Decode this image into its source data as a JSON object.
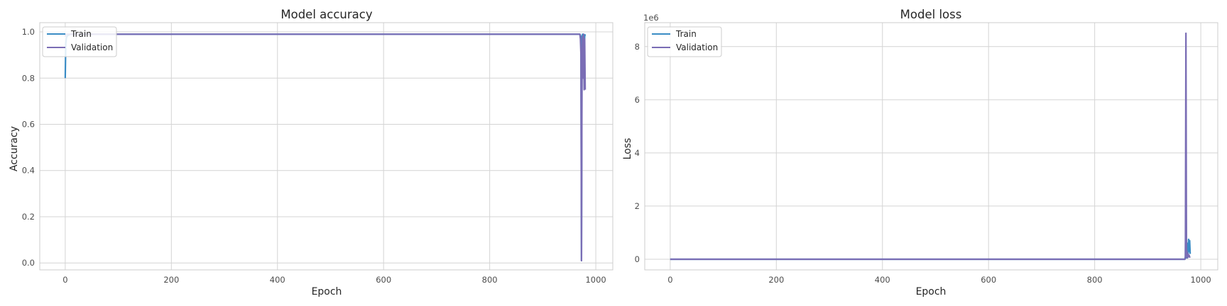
{
  "chart_data": [
    {
      "type": "line",
      "title": "Model accuracy",
      "xlabel": "Epoch",
      "ylabel": "Accuracy",
      "xlim": [
        -48,
        1032
      ],
      "ylim": [
        -0.03,
        1.04
      ],
      "xticks": [
        0,
        200,
        400,
        600,
        800,
        1000
      ],
      "yticks": [
        0.0,
        0.2,
        0.4,
        0.6,
        0.8,
        1.0
      ],
      "ytick_labels": [
        "0.0",
        "0.2",
        "0.4",
        "0.6",
        "0.8",
        "1.0"
      ],
      "grid": true,
      "legend": "top-left",
      "series": [
        {
          "name": "Train",
          "color": "#3a8cc5",
          "x": [
            0,
            1,
            2,
            3,
            5,
            10,
            100,
            300,
            500,
            700,
            900,
            965,
            970,
            971,
            972,
            973,
            974,
            975,
            976,
            977,
            978,
            979,
            980
          ],
          "y": [
            0.8,
            0.95,
            0.97,
            0.98,
            0.985,
            0.99,
            0.99,
            0.99,
            0.99,
            0.99,
            0.99,
            0.99,
            0.99,
            0.985,
            0.98,
            0.01,
            0.97,
            0.99,
            0.95,
            0.99,
            0.9,
            0.98,
            0.99
          ]
        },
        {
          "name": "Validation",
          "color": "#7a6db5",
          "x": [
            0,
            1,
            2,
            5,
            10,
            100,
            300,
            500,
            700,
            900,
            965,
            970,
            971,
            972,
            973,
            974,
            975,
            976,
            977,
            978,
            979,
            980
          ],
          "y": [
            0.98,
            0.99,
            0.99,
            0.99,
            0.99,
            0.99,
            0.99,
            0.99,
            0.99,
            0.99,
            0.99,
            0.99,
            0.97,
            0.9,
            0.01,
            0.85,
            0.98,
            0.8,
            0.99,
            0.75,
            0.97,
            0.75
          ]
        }
      ]
    },
    {
      "type": "line",
      "title": "Model loss",
      "xlabel": "Epoch",
      "ylabel": "Loss",
      "offset_label": "1e6",
      "xlim": [
        -48,
        1032
      ],
      "ylim": [
        -400000,
        8900000
      ],
      "xticks": [
        0,
        200,
        400,
        600,
        800,
        1000
      ],
      "yticks": [
        0,
        2000000,
        4000000,
        6000000,
        8000000
      ],
      "ytick_labels": [
        "0",
        "2",
        "4",
        "6",
        "8"
      ],
      "grid": true,
      "legend": "top-left",
      "series": [
        {
          "name": "Train",
          "color": "#3a8cc5",
          "x": [
            0,
            100,
            300,
            500,
            700,
            900,
            965,
            970,
            971,
            972,
            973,
            974,
            975,
            976,
            977,
            978,
            979,
            980
          ],
          "y": [
            0.5,
            0.1,
            0.05,
            0.05,
            0.05,
            0.05,
            0.05,
            0.05,
            100000,
            2500000,
            50000,
            200000,
            600000,
            100000,
            750000,
            300000,
            700000,
            200000
          ]
        },
        {
          "name": "Validation",
          "color": "#7a6db5",
          "x": [
            0,
            100,
            300,
            500,
            700,
            900,
            965,
            970,
            971,
            972,
            973,
            974,
            975,
            976,
            977,
            978,
            979,
            980
          ],
          "y": [
            0.1,
            0.05,
            0.05,
            0.05,
            0.05,
            0.05,
            0.05,
            0.05,
            50000,
            8500000,
            100000,
            300000,
            50000,
            200000,
            100000,
            150000,
            80000,
            100000
          ]
        }
      ]
    }
  ]
}
